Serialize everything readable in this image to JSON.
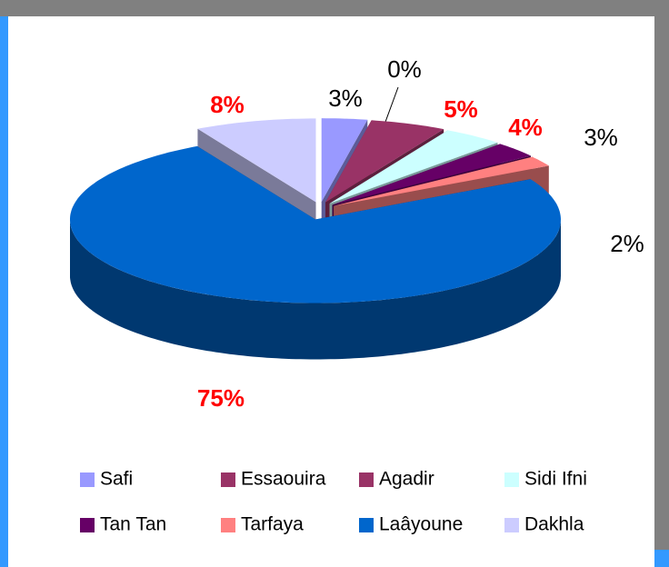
{
  "chart_data": {
    "type": "pie3d",
    "categories": [
      "Safi",
      "Essaouira",
      "Agadir",
      "Sidi Ifni",
      "Tan Tan",
      "Tarfaya",
      "Laâyoune",
      "Dakhla"
    ],
    "values": [
      3,
      0,
      5,
      4,
      3,
      2,
      75,
      8
    ],
    "value_labels": [
      "3%",
      "0%",
      "5%",
      "4%",
      "3%",
      "2%",
      "75%",
      "8%"
    ],
    "colors": [
      "#9999ff",
      "#993366",
      "#993366",
      "#ccffff",
      "#660066",
      "#ff8080",
      "#0066cc",
      "#ccccff"
    ],
    "value_label_colors": [
      "#000000",
      "#000000",
      "#ff0000",
      "#ff0000",
      "#000000",
      "#000000",
      "#ff0000",
      "#ff0000"
    ],
    "value_label_bold": [
      false,
      false,
      true,
      true,
      false,
      false,
      true,
      true
    ],
    "legend": "bottom"
  }
}
